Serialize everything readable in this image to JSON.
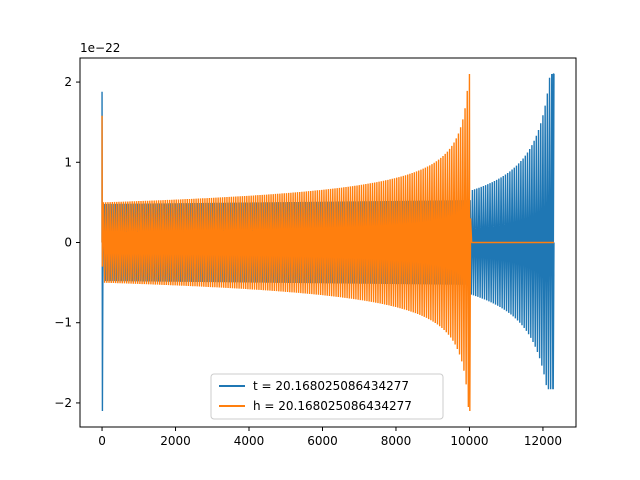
{
  "chart_data": {
    "type": "line",
    "title": "",
    "xlabel": "",
    "ylabel": "",
    "y_offset_label": "1e−22",
    "xlim": [
      -600,
      12900
    ],
    "ylim": [
      -2.3,
      2.3
    ],
    "x_ticks": [
      0,
      2000,
      4000,
      6000,
      8000,
      10000,
      12000
    ],
    "x_tick_labels": [
      "0",
      "2000",
      "4000",
      "6000",
      "8000",
      "10000",
      "12000"
    ],
    "y_ticks": [
      -2,
      -1,
      0,
      1,
      2
    ],
    "y_tick_labels": [
      "−2",
      "−1",
      "0",
      "1",
      "2"
    ],
    "grid": false,
    "legend_position": "lower-center",
    "series": [
      {
        "name": "t = 20.168025086434277",
        "color": "#1f77b4",
        "spike_start": {
          "x": 0,
          "max": 1.88,
          "min": -2.1
        },
        "base_amplitude": 0.48,
        "flat_until": 10050,
        "merger": {
          "x": 12280,
          "max": 2.1,
          "min": -1.83
        },
        "end_x": 12300
      },
      {
        "name": "h = 20.168025086434277",
        "color": "#ff7f0e",
        "spike_start": {
          "x": 0,
          "max": 1.58,
          "min": -0.3
        },
        "base_amplitude": 0.5,
        "merger": {
          "x": 10000,
          "max": 2.1,
          "min": -2.1
        },
        "zero_until": 12300
      }
    ]
  }
}
